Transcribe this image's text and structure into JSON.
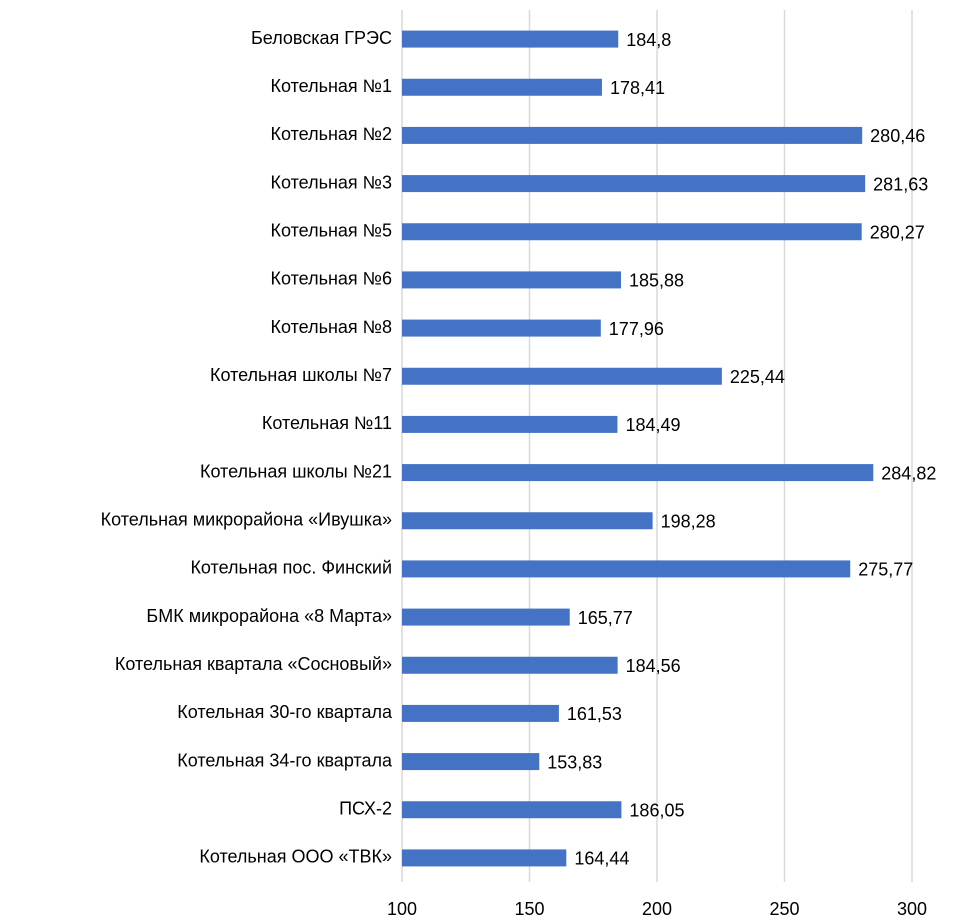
{
  "chart_data": {
    "type": "bar",
    "orientation": "horizontal",
    "categories": [
      "Беловская ГРЭС",
      "Котельная №1",
      "Котельная №2",
      "Котельная №3",
      "Котельная №5",
      "Котельная №6",
      "Котельная №8",
      "Котельная школы №7",
      "Котельная №11",
      "Котельная школы №21",
      "Котельная микрорайона «Ивушка»",
      "Котельная пос. Финский",
      "БМК микрорайона «8 Марта»",
      "Котельная квартала «Сосновый»",
      "Котельная 30-го квартала",
      "Котельная 34-го квартала",
      "ПСХ-2",
      "Котельная ООО «ТВК»"
    ],
    "values": [
      184.8,
      178.41,
      280.46,
      281.63,
      280.27,
      185.88,
      177.96,
      225.44,
      184.49,
      284.82,
      198.28,
      275.77,
      165.77,
      184.56,
      161.53,
      153.83,
      186.05,
      164.44
    ],
    "value_labels": [
      "184,8",
      "178,41",
      "280,46",
      "281,63",
      "280,27",
      "185,88",
      "177,96",
      "225,44",
      "184,49",
      "284,82",
      "198,28",
      "275,77",
      "165,77",
      "184,56",
      "161,53",
      "153,83",
      "186,05",
      "164,44"
    ],
    "color": "#4472c4",
    "xlim": [
      100,
      300
    ],
    "xticks": [
      100,
      150,
      200,
      250,
      300
    ],
    "grid": true
  }
}
